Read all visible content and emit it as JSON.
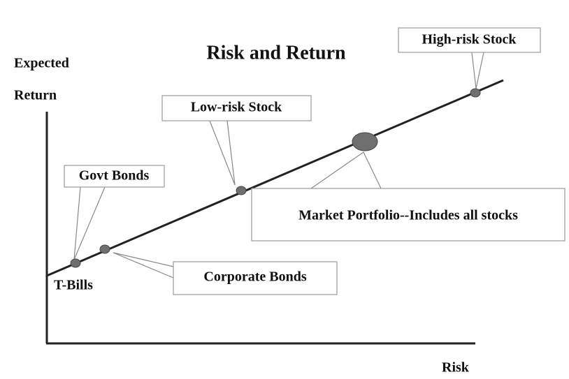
{
  "title": "Risk and Return",
  "y_axis_label": [
    "Expected",
    "Return"
  ],
  "x_axis_label": "Risk",
  "points": [
    {
      "label": "T-Bills"
    },
    {
      "label": "Govt Bonds"
    },
    {
      "label": "Corporate Bonds"
    },
    {
      "label": "Low-risk Stock"
    },
    {
      "label": "Market Portfolio--Includes all stocks"
    },
    {
      "label": "High-risk Stock"
    }
  ]
}
